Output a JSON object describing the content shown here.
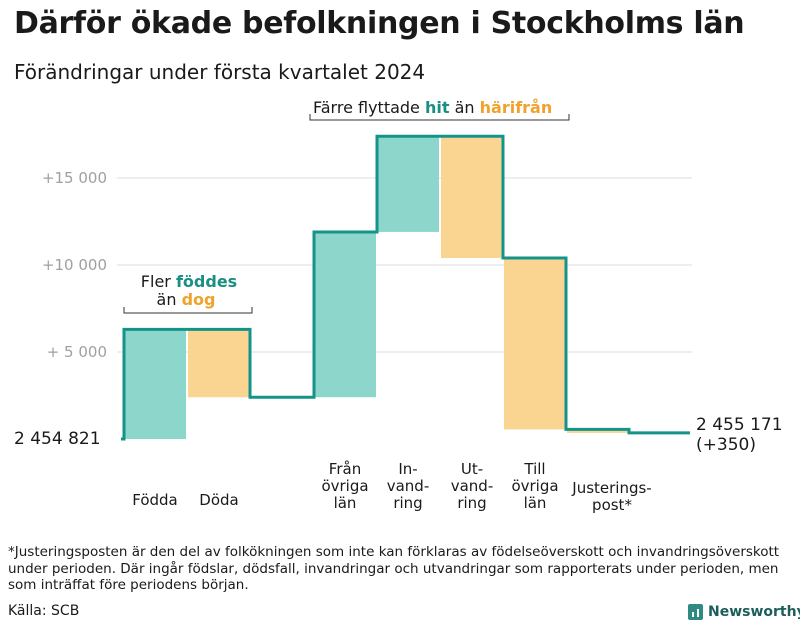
{
  "title": "Därför ökade befolkningen i Stockholms län",
  "subtitle": "Förändringar under första kvartalet 2024",
  "chart_data": {
    "type": "waterfall",
    "base_value": 2454821,
    "base_label": "2 454  821",
    "end_label": [
      "2 455 171",
      "(+350)"
    ],
    "y_ticks": [
      {
        "value": 5000,
        "label": "+  5 000"
      },
      {
        "value": 10000,
        "label": "+10   000"
      },
      {
        "value": 15000,
        "label": "+15   000"
      }
    ],
    "ylim": [
      0,
      17500
    ],
    "steps": [
      {
        "label": [
          "Födda"
        ],
        "change": 6300,
        "kind": "plus"
      },
      {
        "label": [
          "Döda"
        ],
        "change": -3900,
        "kind": "minus"
      },
      {
        "label": [
          "Från",
          "övriga",
          "län"
        ],
        "change": 9500,
        "kind": "plus"
      },
      {
        "label": [
          "In-",
          "vand-",
          "ring"
        ],
        "change": 5500,
        "kind": "plus"
      },
      {
        "label": [
          "Ut-",
          "vand-",
          "ring"
        ],
        "change": -7000,
        "kind": "minus"
      },
      {
        "label": [
          "Till",
          "övriga",
          "län"
        ],
        "change": -9850,
        "kind": "minus"
      },
      {
        "label": [
          "Justerings-",
          "post*"
        ],
        "change": -200,
        "kind": "minus"
      }
    ],
    "annotations": [
      {
        "line1": "Fler ",
        "hl1": "föddes",
        "line2": "än ",
        "hl2": "dog"
      },
      {
        "line1": "Färre flyttade ",
        "hl1": "hit",
        "mid": " än ",
        "hl2": "härifrån"
      }
    ],
    "colors": {
      "plus": "#8dd6cc",
      "minus": "#fad591",
      "line": "#14938a",
      "plus_text": "#1a8f84",
      "minus_text": "#f0a32c",
      "grid": "#dddddd",
      "axis_text": "#a0a0a0"
    }
  },
  "footnote": "*Justeringsposten är den del av folkökningen som inte kan förklaras av födelseöverskott och invandringsöverskott under perioden. Där ingår födslar, dödsfall, invandringar och utvandringar som rapporterats under perioden, men som inträffat före periodens början.",
  "source": "Källa: SCB",
  "brand": "Newsworthy"
}
